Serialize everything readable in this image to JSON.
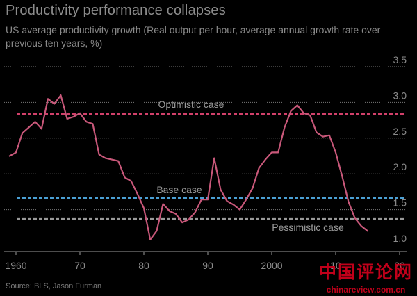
{
  "title": "Productivity performance collapses",
  "subtitle": "US average productivity growth (Real output per hour, average annual growth rate over previous ten years, %)",
  "source": "Source: BLS, Jason Furman",
  "watermark": {
    "main": "中国评论网",
    "url": "chinareview.com.cn"
  },
  "colors": {
    "series": "#c9587a",
    "optimistic": "#d2406a",
    "base": "#4a9fd4",
    "pessimistic": "#9a9a9a",
    "grid": "#7a7a7a"
  },
  "chart_data": {
    "type": "line",
    "title": "Productivity performance collapses",
    "ylabel": "",
    "xlabel": "",
    "xlim": [
      1959,
      2021
    ],
    "ylim": [
      0.9,
      3.5
    ],
    "x_ticks": [
      {
        "value": 1960,
        "label": "1960"
      },
      {
        "value": 1970,
        "label": "70"
      },
      {
        "value": 1980,
        "label": "80"
      },
      {
        "value": 1990,
        "label": "90"
      },
      {
        "value": 2000,
        "label": "2000"
      },
      {
        "value": 2010,
        "label": "10"
      },
      {
        "value": 2020,
        "label": "20"
      }
    ],
    "y_ticks": [
      {
        "value": 1.0,
        "label": "1.0"
      },
      {
        "value": 1.5,
        "label": "1.5"
      },
      {
        "value": 2.0,
        "label": "2.0"
      },
      {
        "value": 2.5,
        "label": "2.5"
      },
      {
        "value": 3.0,
        "label": "3.0"
      },
      {
        "value": 3.5,
        "label": "3.5"
      }
    ],
    "grid": true,
    "series": [
      {
        "x": [
          1959,
          1960,
          1961,
          1962,
          1963,
          1964,
          1965,
          1966,
          1967,
          1968,
          1969,
          1970,
          1971,
          1972,
          1973,
          1974,
          1975,
          1976,
          1977,
          1978,
          1979,
          1980,
          1981,
          1982,
          1983,
          1984,
          1985,
          1986,
          1987,
          1988,
          1989,
          1990,
          1991,
          1992,
          1993,
          1994,
          1995,
          1996,
          1997,
          1998,
          1999,
          2000,
          2001,
          2002,
          2003,
          2004,
          2005,
          2006,
          2007,
          2008,
          2009,
          2010,
          2011,
          2012,
          2013,
          2014,
          2015,
          2016,
          2017,
          2018
        ],
        "values": [
          2.25,
          2.3,
          2.57,
          2.65,
          2.73,
          2.63,
          3.05,
          2.98,
          3.1,
          2.77,
          2.8,
          2.85,
          2.73,
          2.7,
          2.27,
          2.22,
          2.2,
          2.18,
          1.95,
          1.9,
          1.72,
          1.52,
          1.08,
          1.2,
          1.58,
          1.48,
          1.44,
          1.32,
          1.36,
          1.46,
          1.64,
          1.64,
          2.22,
          1.78,
          1.62,
          1.57,
          1.5,
          1.64,
          1.8,
          2.08,
          2.2,
          2.3,
          2.3,
          2.65,
          2.88,
          2.96,
          2.85,
          2.82,
          2.58,
          2.52,
          2.54,
          2.3,
          1.97,
          1.61,
          1.38,
          1.27,
          1.2,
          null,
          null,
          null
        ]
      }
    ],
    "reference_lines": [
      {
        "label": "Optimistic case",
        "value": 2.84,
        "style": "dashed"
      },
      {
        "label": "Base case",
        "value": 1.66,
        "style": "dashed"
      },
      {
        "label": "Pessimistic case",
        "value": 1.37,
        "style": "dashed"
      }
    ]
  }
}
